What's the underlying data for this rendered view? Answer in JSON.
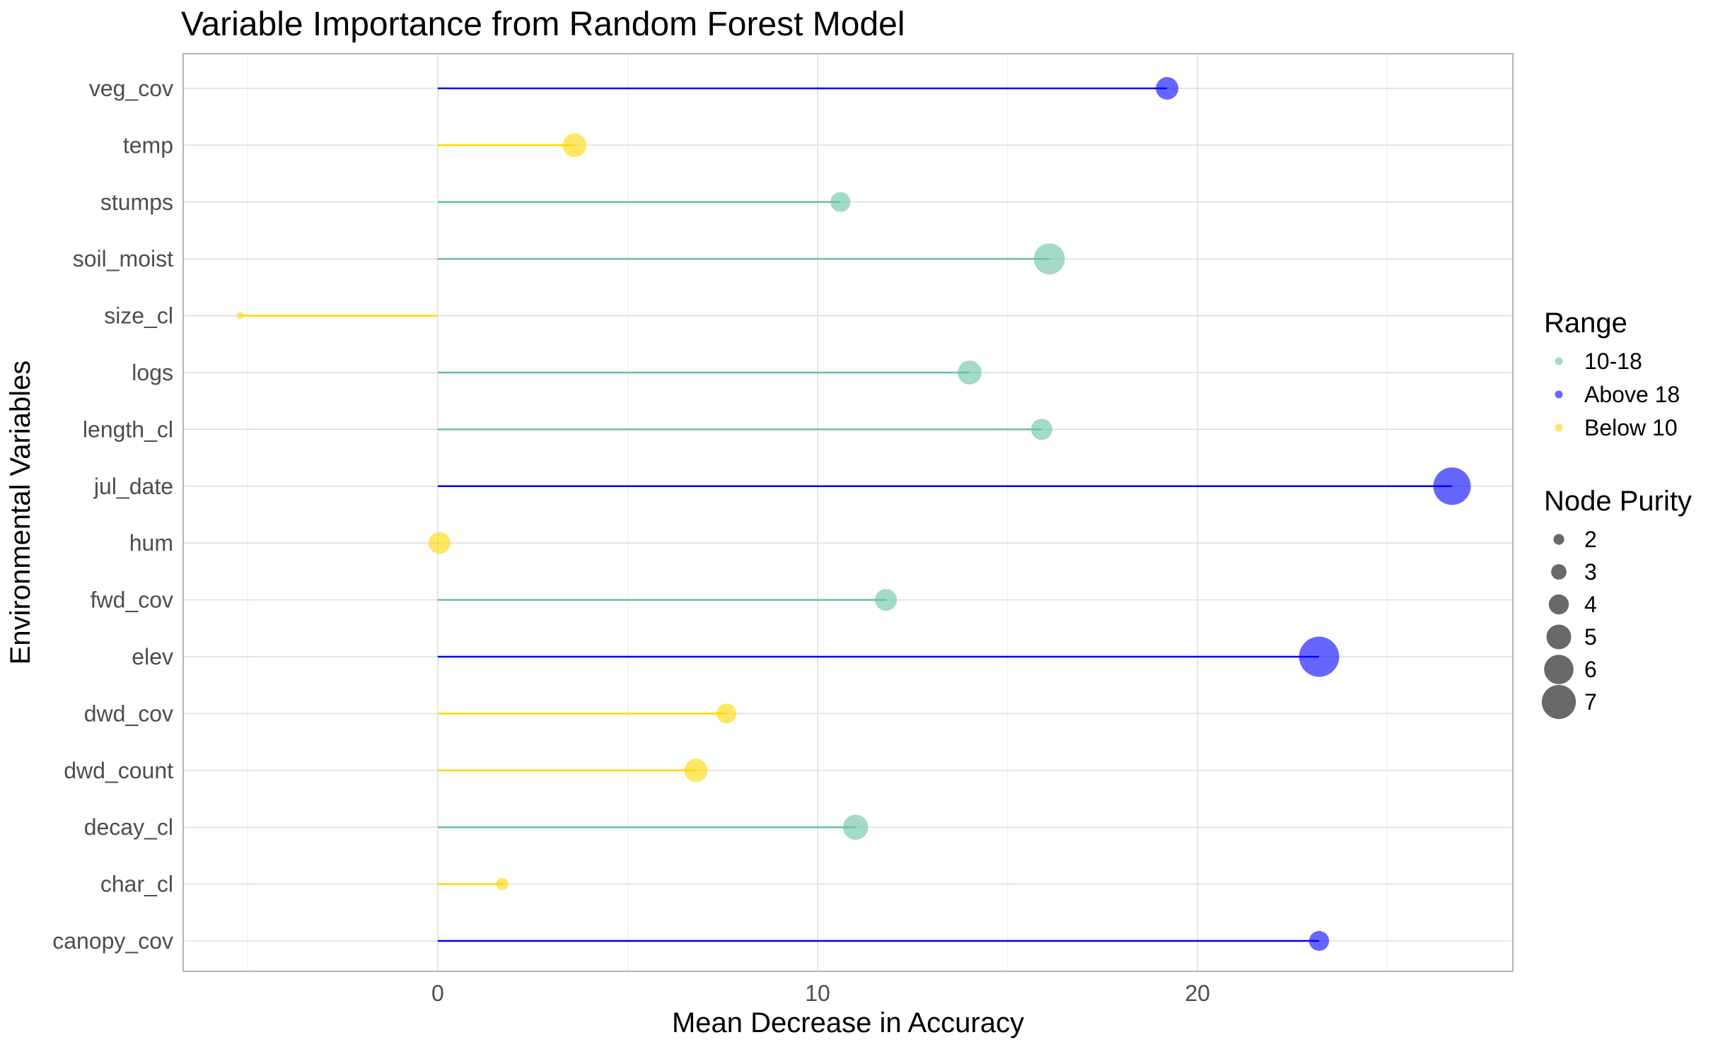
{
  "chart_data": {
    "type": "lollipop",
    "title": "Variable Importance from Random Forest Model",
    "xlabel": "Mean Decrease in Accuracy",
    "ylabel": "Environmental Variables",
    "xlim": [
      -6.7,
      28.3
    ],
    "x_ticks": [
      0,
      10,
      20
    ],
    "x_tick_labels": [
      "0",
      "10",
      "20"
    ],
    "grid": true,
    "legend_position": "right",
    "categories": [
      "canopy_cov",
      "char_cl",
      "decay_cl",
      "dwd_count",
      "dwd_cov",
      "elev",
      "fwd_cov",
      "hum",
      "jul_date",
      "length_cl",
      "logs",
      "size_cl",
      "soil_moist",
      "stumps",
      "temp",
      "veg_cov"
    ],
    "values": [
      23.2,
      1.7,
      11.0,
      6.8,
      7.6,
      23.2,
      11.8,
      0.05,
      26.7,
      15.9,
      14.0,
      -5.2,
      16.1,
      10.6,
      3.6,
      19.2
    ],
    "node_purity": [
      3.5,
      2.3,
      4.3,
      4.0,
      3.5,
      6.6,
      3.8,
      3.8,
      6.2,
      3.7,
      4.1,
      1.5,
      5.2,
      3.5,
      4.1,
      3.9
    ],
    "range_group": [
      "Above 18",
      "Below 10",
      "10-18",
      "Below 10",
      "Below 10",
      "Above 18",
      "10-18",
      "Below 10",
      "Above 18",
      "10-18",
      "10-18",
      "Below 10",
      "10-18",
      "10-18",
      "Below 10",
      "Above 18"
    ],
    "legend": {
      "color_title": "Range",
      "color_entries": [
        {
          "label": "10-18",
          "color": "#66c2a5"
        },
        {
          "label": "Above 18",
          "color": "#0000ff"
        },
        {
          "label": "Below 10",
          "color": "#ffd700"
        }
      ],
      "size_title": "Node Purity",
      "size_entries": [
        2,
        3,
        4,
        5,
        6,
        7
      ],
      "size_labels": [
        "2",
        "3",
        "4",
        "5",
        "6",
        "7"
      ]
    },
    "colors": {
      "10-18": "#66c2a5",
      "Above 18": "#0000ff",
      "Below 10": "#ffd700",
      "grid": "#dedede",
      "panel_border": "#b3b3b3",
      "size_legend_point": "#595959"
    }
  }
}
